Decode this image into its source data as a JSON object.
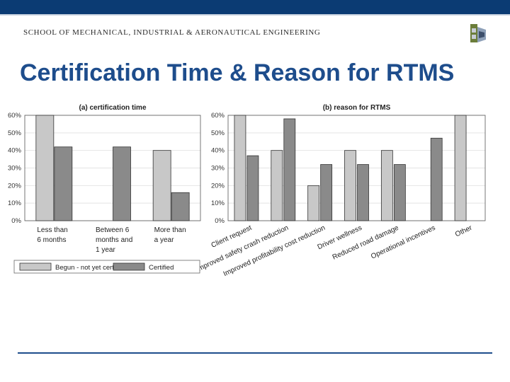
{
  "header": {
    "school": "SCHOOL OF MECHANICAL, INDUSTRIAL & AERONAUTICAL ENGINEERING",
    "title": "Certification Time & Reason for RTMS"
  },
  "colors": {
    "brand_blue": "#0b3b73",
    "title_blue": "#1e4d8c",
    "begun": "#c8c8c8",
    "certified": "#8a8a8a"
  },
  "chart_data": [
    {
      "type": "bar",
      "title": "(a) certification time",
      "categories": [
        [
          "Less than",
          "6 months"
        ],
        [
          "Between 6",
          "months and",
          "1 year"
        ],
        [
          "More than",
          "a year"
        ]
      ],
      "series": [
        {
          "name": "Begun - not yet certified",
          "values": [
            60,
            0,
            40
          ]
        },
        {
          "name": "Certified",
          "values": [
            42,
            42,
            16
          ]
        }
      ],
      "ylim": [
        0,
        60
      ],
      "yticks": [
        "0%",
        "10%",
        "20%",
        "30%",
        "40%",
        "50%",
        "60%"
      ],
      "legend": "bottom"
    },
    {
      "type": "bar",
      "title": "(b) reason for RTMS",
      "categories": [
        "Client request",
        "Improved safety crash reduction",
        "Improved profitability cost reduction",
        "Driver wellness",
        "Reduced road damage",
        "Operational incentives",
        "Other"
      ],
      "series": [
        {
          "name": "Begun - not yet certified",
          "values": [
            60,
            40,
            20,
            40,
            40,
            0,
            60
          ]
        },
        {
          "name": "Certified",
          "values": [
            37,
            58,
            32,
            32,
            32,
            47,
            0
          ]
        }
      ],
      "ylim": [
        0,
        60
      ],
      "yticks": [
        "0%",
        "10%",
        "20%",
        "30%",
        "40%",
        "50%",
        "60%"
      ]
    }
  ]
}
